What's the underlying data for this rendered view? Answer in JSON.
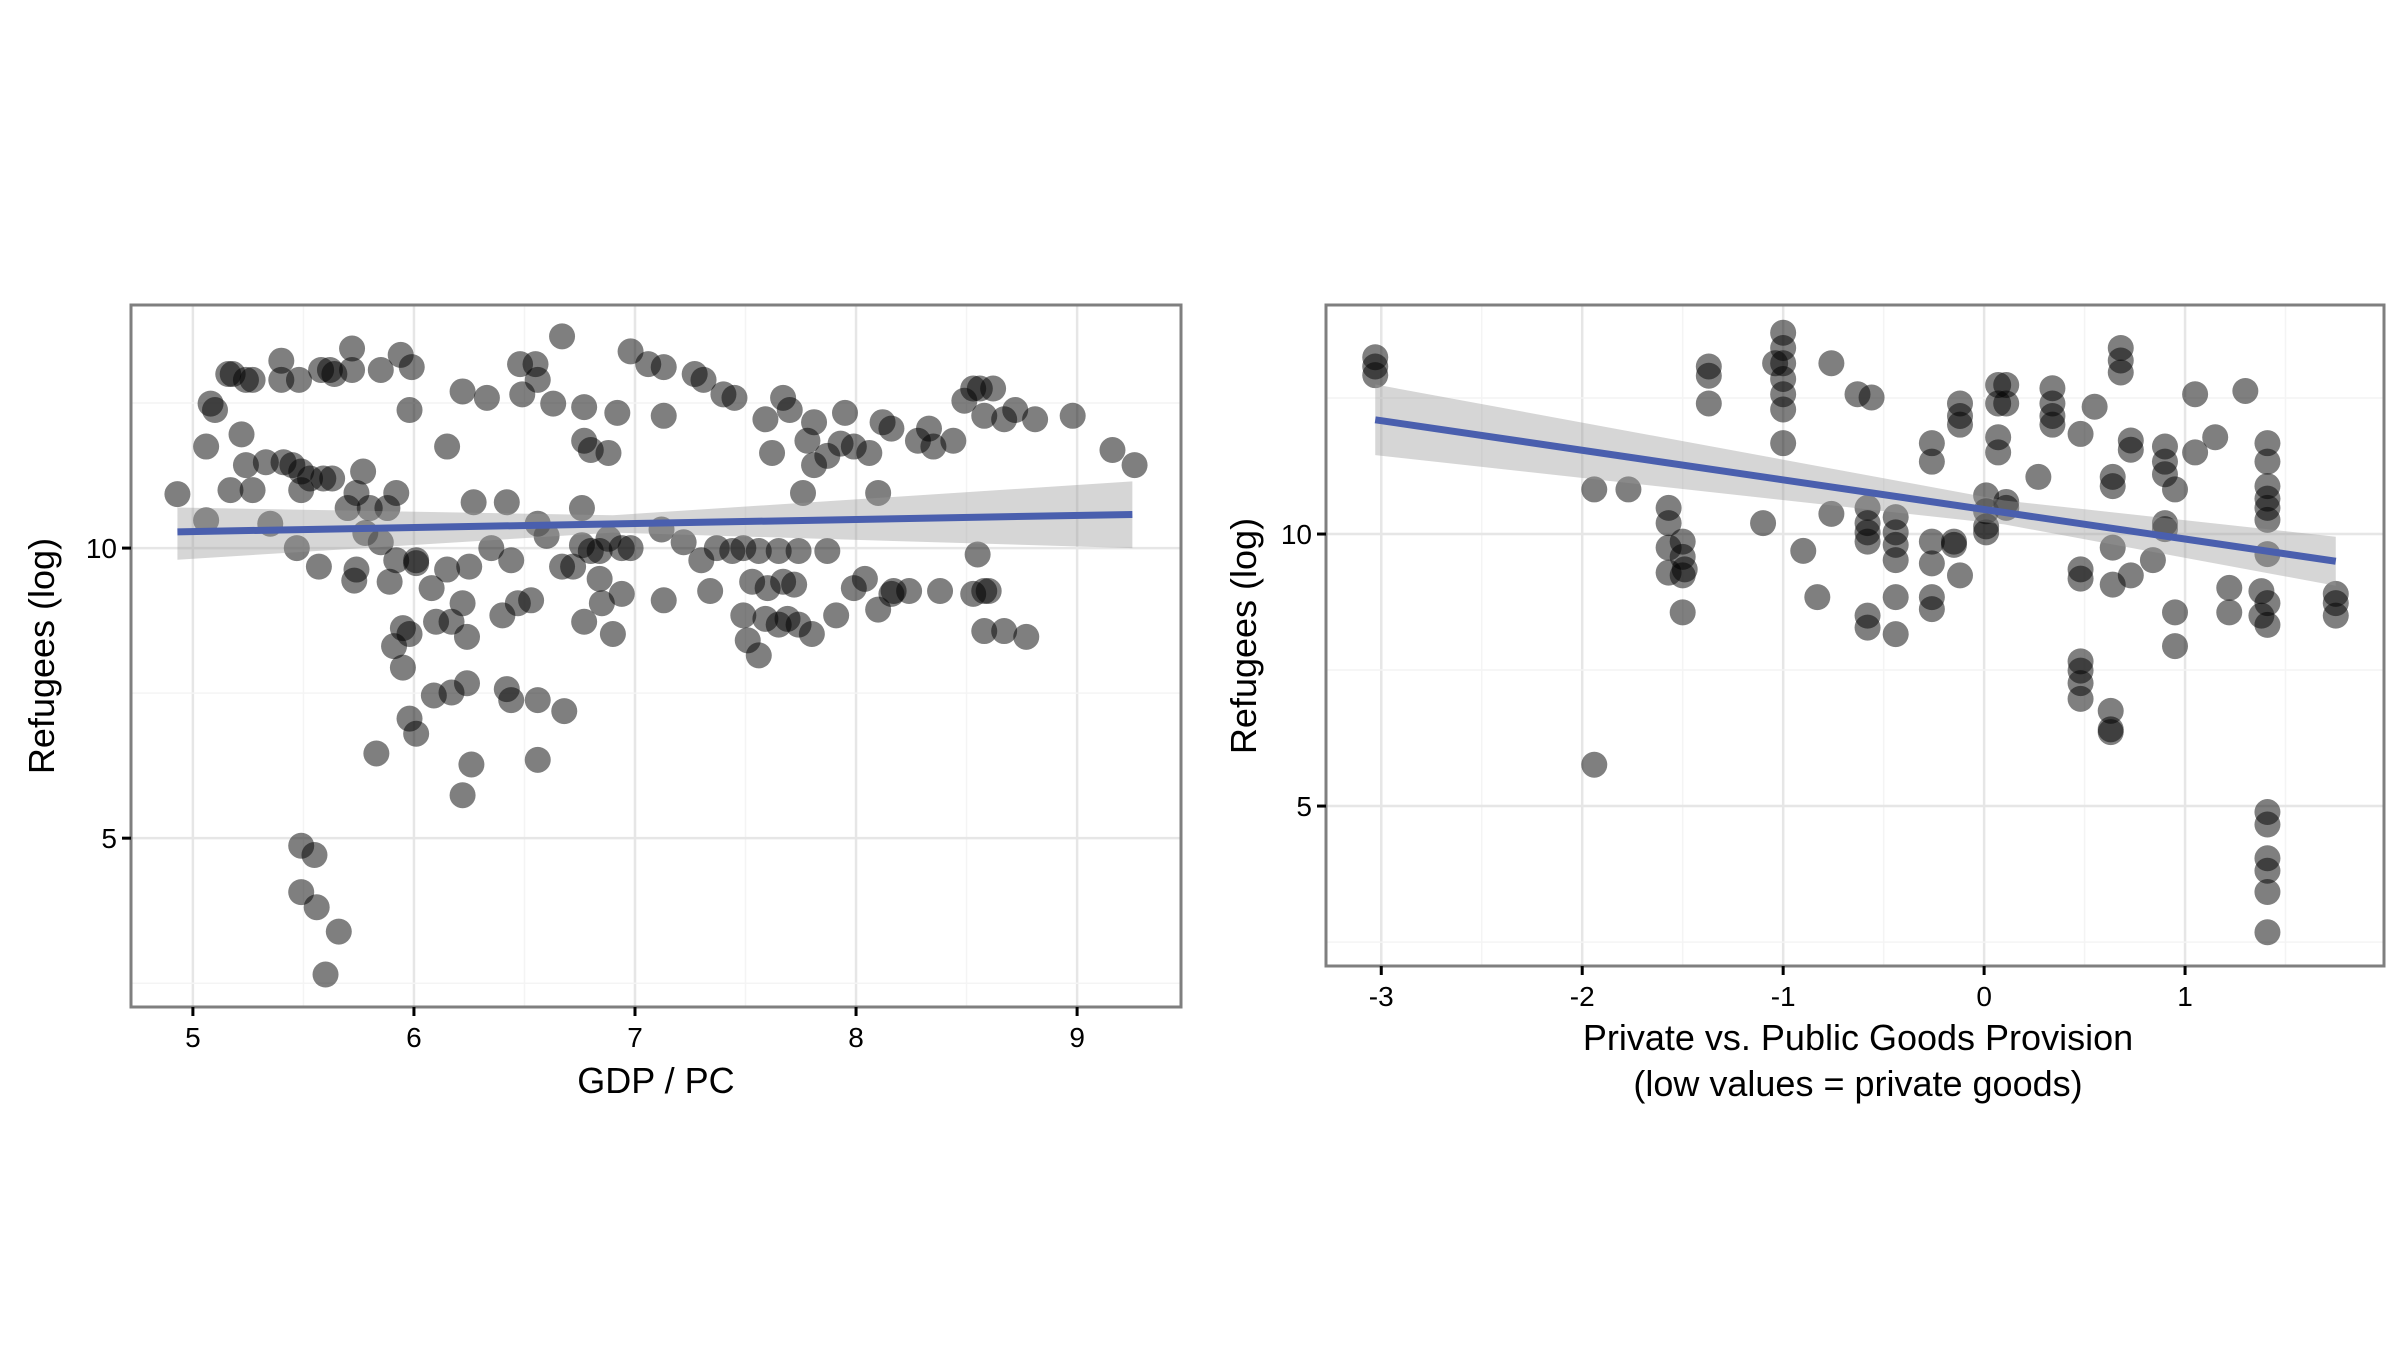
{
  "chart_data": [
    {
      "type": "scatter",
      "xlabel": "GDP / PC",
      "ylabel": "Refugees (log)",
      "xlim": [
        4.72,
        9.47
      ],
      "ylim": [
        2.09,
        14.19
      ],
      "xticks": [
        5,
        6,
        7,
        8,
        9
      ],
      "yticks": [
        5,
        10
      ],
      "grid": true,
      "point_color": "#000000",
      "point_opacity": 0.5,
      "trend": {
        "color": "#4a5fae",
        "x": [
          4.93,
          9.25
        ],
        "y": [
          10.28,
          10.58
        ],
        "ci_color": "#cccccc",
        "ci_lower": [
          9.8,
          10.0
        ],
        "ci_upper": [
          10.7,
          11.15
        ],
        "ci_mid_x": 6.9,
        "ci_mid_halfwidth": 0.15
      },
      "points": [
        [
          4.93,
          10.93
        ],
        [
          5.06,
          11.75
        ],
        [
          5.08,
          12.49
        ],
        [
          5.1,
          12.38
        ],
        [
          5.16,
          13.0
        ],
        [
          5.18,
          13.0
        ],
        [
          5.22,
          11.96
        ],
        [
          5.24,
          12.9
        ],
        [
          5.27,
          12.9
        ],
        [
          5.24,
          11.43
        ],
        [
          5.27,
          11.0
        ],
        [
          5.17,
          11.0
        ],
        [
          5.06,
          10.48
        ],
        [
          5.35,
          10.42
        ],
        [
          5.4,
          13.23
        ],
        [
          5.4,
          12.9
        ],
        [
          5.48,
          12.9
        ],
        [
          5.33,
          11.48
        ],
        [
          5.41,
          11.48
        ],
        [
          5.45,
          11.43
        ],
        [
          5.49,
          11.32
        ],
        [
          5.49,
          11.0
        ],
        [
          5.53,
          11.2
        ],
        [
          5.59,
          11.2
        ],
        [
          5.63,
          11.2
        ],
        [
          5.58,
          13.07
        ],
        [
          5.62,
          13.07
        ],
        [
          5.64,
          13.0
        ],
        [
          5.72,
          13.07
        ],
        [
          5.72,
          13.44
        ],
        [
          5.85,
          13.07
        ],
        [
          5.94,
          13.33
        ],
        [
          5.99,
          13.12
        ],
        [
          5.98,
          12.38
        ],
        [
          5.77,
          11.32
        ],
        [
          5.74,
          10.95
        ],
        [
          5.7,
          10.69
        ],
        [
          5.8,
          10.69
        ],
        [
          5.88,
          10.69
        ],
        [
          5.92,
          10.95
        ],
        [
          5.78,
          10.26
        ],
        [
          5.47,
          10.0
        ],
        [
          5.57,
          9.68
        ],
        [
          5.73,
          9.44
        ],
        [
          5.92,
          9.79
        ],
        [
          6.01,
          9.79
        ],
        [
          5.89,
          9.42
        ],
        [
          5.95,
          8.62
        ],
        [
          5.98,
          8.52
        ],
        [
          5.91,
          8.31
        ],
        [
          5.95,
          7.94
        ],
        [
          5.98,
          7.06
        ],
        [
          6.01,
          6.8
        ],
        [
          5.83,
          6.46
        ],
        [
          6.08,
          9.31
        ],
        [
          6.15,
          9.63
        ],
        [
          6.1,
          8.73
        ],
        [
          6.17,
          8.73
        ],
        [
          6.22,
          9.05
        ],
        [
          6.25,
          9.68
        ],
        [
          6.24,
          8.47
        ],
        [
          6.09,
          7.46
        ],
        [
          6.17,
          7.51
        ],
        [
          6.24,
          7.67
        ],
        [
          6.26,
          6.27
        ],
        [
          6.22,
          5.74
        ],
        [
          6.15,
          11.75
        ],
        [
          6.22,
          12.7
        ],
        [
          6.33,
          12.59
        ],
        [
          6.27,
          10.79
        ],
        [
          6.35,
          10.0
        ],
        [
          6.42,
          10.79
        ],
        [
          6.44,
          9.79
        ],
        [
          6.4,
          8.84
        ],
        [
          6.47,
          9.05
        ],
        [
          6.53,
          9.1
        ],
        [
          6.42,
          7.57
        ],
        [
          6.44,
          7.38
        ],
        [
          6.56,
          7.38
        ],
        [
          6.56,
          6.35
        ],
        [
          6.68,
          7.19
        ],
        [
          6.48,
          13.17
        ],
        [
          6.55,
          13.17
        ],
        [
          6.56,
          12.9
        ],
        [
          6.49,
          12.65
        ],
        [
          6.63,
          12.49
        ],
        [
          6.67,
          13.65
        ],
        [
          6.56,
          10.42
        ],
        [
          6.6,
          10.21
        ],
        [
          6.67,
          9.68
        ],
        [
          6.72,
          9.68
        ],
        [
          6.76,
          10.69
        ],
        [
          6.77,
          11.85
        ],
        [
          6.77,
          12.43
        ],
        [
          6.8,
          11.69
        ],
        [
          6.88,
          11.64
        ],
        [
          6.92,
          12.33
        ],
        [
          6.76,
          10.05
        ],
        [
          6.8,
          9.95
        ],
        [
          6.84,
          9.95
        ],
        [
          6.88,
          10.16
        ],
        [
          6.94,
          10.0
        ],
        [
          6.98,
          10.0
        ],
        [
          6.84,
          9.47
        ],
        [
          6.85,
          9.05
        ],
        [
          6.77,
          8.73
        ],
        [
          6.9,
          8.52
        ],
        [
          6.94,
          9.21
        ],
        [
          6.98,
          13.39
        ],
        [
          7.06,
          13.17
        ],
        [
          7.13,
          13.12
        ],
        [
          7.13,
          12.28
        ],
        [
          7.13,
          9.1
        ],
        [
          7.12,
          10.32
        ],
        [
          7.22,
          10.1
        ],
        [
          7.27,
          13.0
        ],
        [
          7.31,
          12.9
        ],
        [
          7.4,
          12.65
        ],
        [
          7.45,
          12.59
        ],
        [
          7.3,
          9.79
        ],
        [
          7.34,
          9.26
        ],
        [
          7.37,
          10.0
        ],
        [
          7.44,
          9.95
        ],
        [
          7.49,
          10.0
        ],
        [
          7.56,
          9.95
        ],
        [
          7.53,
          9.42
        ],
        [
          7.49,
          8.84
        ],
        [
          7.51,
          8.41
        ],
        [
          7.56,
          8.15
        ],
        [
          7.59,
          8.78
        ],
        [
          7.65,
          8.68
        ],
        [
          7.69,
          8.78
        ],
        [
          7.6,
          9.31
        ],
        [
          7.67,
          9.42
        ],
        [
          7.72,
          9.37
        ],
        [
          7.65,
          9.95
        ],
        [
          7.74,
          9.95
        ],
        [
          7.8,
          8.52
        ],
        [
          7.87,
          9.95
        ],
        [
          7.91,
          8.84
        ],
        [
          7.74,
          8.68
        ],
        [
          7.59,
          12.22
        ],
        [
          7.62,
          11.64
        ],
        [
          7.67,
          12.59
        ],
        [
          7.7,
          12.38
        ],
        [
          7.76,
          10.95
        ],
        [
          7.78,
          11.85
        ],
        [
          7.81,
          12.17
        ],
        [
          7.81,
          11.43
        ],
        [
          7.87,
          11.59
        ],
        [
          7.93,
          11.8
        ],
        [
          7.95,
          12.33
        ],
        [
          7.99,
          11.75
        ],
        [
          8.06,
          11.64
        ],
        [
          7.99,
          9.31
        ],
        [
          8.04,
          9.47
        ],
        [
          8.1,
          8.94
        ],
        [
          8.16,
          9.21
        ],
        [
          8.17,
          9.26
        ],
        [
          8.24,
          9.26
        ],
        [
          8.1,
          10.95
        ],
        [
          8.12,
          12.17
        ],
        [
          8.16,
          12.06
        ],
        [
          8.28,
          11.85
        ],
        [
          8.33,
          12.06
        ],
        [
          8.35,
          11.75
        ],
        [
          8.44,
          11.85
        ],
        [
          8.38,
          9.26
        ],
        [
          8.49,
          12.54
        ],
        [
          8.53,
          12.75
        ],
        [
          8.56,
          12.75
        ],
        [
          8.62,
          12.75
        ],
        [
          8.55,
          9.89
        ],
        [
          8.53,
          9.21
        ],
        [
          8.58,
          9.26
        ],
        [
          8.6,
          9.26
        ],
        [
          8.58,
          8.57
        ],
        [
          8.67,
          8.57
        ],
        [
          8.77,
          8.47
        ],
        [
          8.58,
          12.28
        ],
        [
          8.67,
          12.22
        ],
        [
          8.72,
          12.38
        ],
        [
          8.81,
          12.22
        ],
        [
          8.98,
          12.28
        ],
        [
          9.16,
          11.69
        ],
        [
          9.26,
          11.43
        ],
        [
          5.49,
          4.87
        ],
        [
          5.55,
          4.71
        ],
        [
          5.49,
          4.07
        ],
        [
          5.56,
          3.81
        ],
        [
          5.66,
          3.39
        ],
        [
          5.6,
          2.65
        ],
        [
          5.74,
          9.63
        ],
        [
          5.85,
          10.1
        ],
        [
          6.01,
          9.74
        ]
      ]
    },
    {
      "type": "scatter",
      "xlabel": "Private vs. Public Goods Provision",
      "xlabel2": "(low values = private goods)",
      "ylabel": "Refugees (log)",
      "xlim": [
        -3.275,
        1.99
      ],
      "ylim": [
        2.06,
        14.21
      ],
      "xticks": [
        -3,
        -2,
        -1,
        0,
        1
      ],
      "yticks": [
        5,
        10
      ],
      "grid": true,
      "point_color": "#000000",
      "point_opacity": 0.5,
      "trend": {
        "color": "#4a5fae",
        "x": [
          -3.03,
          1.75
        ],
        "y": [
          12.1,
          9.5
        ],
        "ci_color": "#cccccc",
        "ci_lower": [
          11.45,
          9.05
        ],
        "ci_upper": [
          12.75,
          9.95
        ],
        "ci_mid_x": 0.1,
        "ci_mid_halfwidth": 0.22
      },
      "points": [
        [
          -3.03,
          13.25
        ],
        [
          -3.03,
          13.08
        ],
        [
          -3.03,
          12.92
        ],
        [
          -1.94,
          10.82
        ],
        [
          -1.94,
          5.76
        ],
        [
          -1.77,
          10.82
        ],
        [
          -1.57,
          10.48
        ],
        [
          -1.57,
          10.2
        ],
        [
          -1.57,
          9.75
        ],
        [
          -1.57,
          9.29
        ],
        [
          -1.5,
          9.58
        ],
        [
          -1.5,
          9.24
        ],
        [
          -1.5,
          8.56
        ],
        [
          -1.5,
          9.86
        ],
        [
          -1.49,
          9.35
        ],
        [
          -1.37,
          13.08
        ],
        [
          -1.37,
          12.91
        ],
        [
          -1.37,
          12.4
        ],
        [
          -1.1,
          10.2
        ],
        [
          -1.0,
          13.7
        ],
        [
          -1.0,
          13.42
        ],
        [
          -1.0,
          13.14
        ],
        [
          -1.0,
          12.85
        ],
        [
          -1.0,
          12.57
        ],
        [
          -1.0,
          12.29
        ],
        [
          -1.0,
          11.67
        ],
        [
          -1.04,
          13.14
        ],
        [
          -0.9,
          9.69
        ],
        [
          -0.83,
          8.84
        ],
        [
          -0.76,
          13.14
        ],
        [
          -0.76,
          10.37
        ],
        [
          -0.63,
          12.57
        ],
        [
          -0.56,
          12.51
        ],
        [
          -0.58,
          10.48
        ],
        [
          -0.58,
          10.2
        ],
        [
          -0.58,
          10.03
        ],
        [
          -0.58,
          9.86
        ],
        [
          -0.58,
          8.5
        ],
        [
          -0.58,
          8.28
        ],
        [
          -0.44,
          10.31
        ],
        [
          -0.44,
          10.03
        ],
        [
          -0.44,
          9.8
        ],
        [
          -0.44,
          9.52
        ],
        [
          -0.44,
          8.84
        ],
        [
          -0.44,
          8.16
        ],
        [
          -0.26,
          11.67
        ],
        [
          -0.26,
          11.33
        ],
        [
          -0.26,
          9.86
        ],
        [
          -0.26,
          9.46
        ],
        [
          -0.26,
          8.84
        ],
        [
          -0.26,
          8.62
        ],
        [
          -0.15,
          9.86
        ],
        [
          -0.15,
          9.8
        ],
        [
          -0.12,
          9.24
        ],
        [
          -0.12,
          12.4
        ],
        [
          -0.12,
          12.17
        ],
        [
          -0.12,
          12.01
        ],
        [
          0.01,
          10.71
        ],
        [
          0.01,
          10.42
        ],
        [
          0.01,
          10.14
        ],
        [
          0.01,
          10.03
        ],
        [
          0.07,
          12.74
        ],
        [
          0.07,
          12.4
        ],
        [
          0.07,
          11.78
        ],
        [
          0.07,
          11.5
        ],
        [
          0.11,
          12.74
        ],
        [
          0.11,
          12.4
        ],
        [
          0.11,
          10.59
        ],
        [
          0.11,
          10.48
        ],
        [
          0.27,
          11.05
        ],
        [
          0.34,
          12.68
        ],
        [
          0.34,
          12.4
        ],
        [
          0.34,
          12.17
        ],
        [
          0.34,
          12.01
        ],
        [
          0.48,
          11.84
        ],
        [
          0.48,
          9.35
        ],
        [
          0.48,
          9.18
        ],
        [
          0.48,
          7.66
        ],
        [
          0.48,
          7.49
        ],
        [
          0.48,
          7.26
        ],
        [
          0.48,
          6.97
        ],
        [
          0.55,
          12.34
        ],
        [
          0.63,
          6.75
        ],
        [
          0.63,
          6.41
        ],
        [
          0.63,
          6.36
        ],
        [
          0.64,
          11.05
        ],
        [
          0.64,
          10.88
        ],
        [
          0.64,
          9.75
        ],
        [
          0.64,
          9.07
        ],
        [
          0.68,
          13.42
        ],
        [
          0.68,
          13.19
        ],
        [
          0.68,
          12.97
        ],
        [
          0.73,
          11.72
        ],
        [
          0.73,
          11.55
        ],
        [
          0.73,
          9.24
        ],
        [
          0.84,
          9.52
        ],
        [
          0.9,
          11.61
        ],
        [
          0.9,
          11.33
        ],
        [
          0.9,
          11.1
        ],
        [
          0.9,
          10.2
        ],
        [
          0.9,
          10.09
        ],
        [
          0.95,
          10.82
        ],
        [
          0.95,
          8.56
        ],
        [
          0.95,
          7.94
        ],
        [
          1.05,
          12.57
        ],
        [
          1.05,
          11.5
        ],
        [
          1.15,
          11.78
        ],
        [
          1.22,
          9.01
        ],
        [
          1.22,
          8.56
        ],
        [
          1.3,
          12.63
        ],
        [
          1.38,
          8.95
        ],
        [
          1.38,
          8.5
        ],
        [
          1.41,
          11.67
        ],
        [
          1.41,
          11.33
        ],
        [
          1.41,
          10.88
        ],
        [
          1.41,
          10.65
        ],
        [
          1.41,
          10.48
        ],
        [
          1.41,
          10.26
        ],
        [
          1.41,
          9.63
        ],
        [
          1.41,
          8.73
        ],
        [
          1.41,
          8.33
        ],
        [
          1.41,
          4.89
        ],
        [
          1.41,
          4.66
        ],
        [
          1.41,
          4.04
        ],
        [
          1.41,
          3.81
        ],
        [
          1.41,
          3.42
        ],
        [
          1.41,
          2.68
        ],
        [
          1.75,
          8.9
        ],
        [
          1.75,
          8.73
        ],
        [
          1.75,
          8.5
        ]
      ]
    }
  ]
}
